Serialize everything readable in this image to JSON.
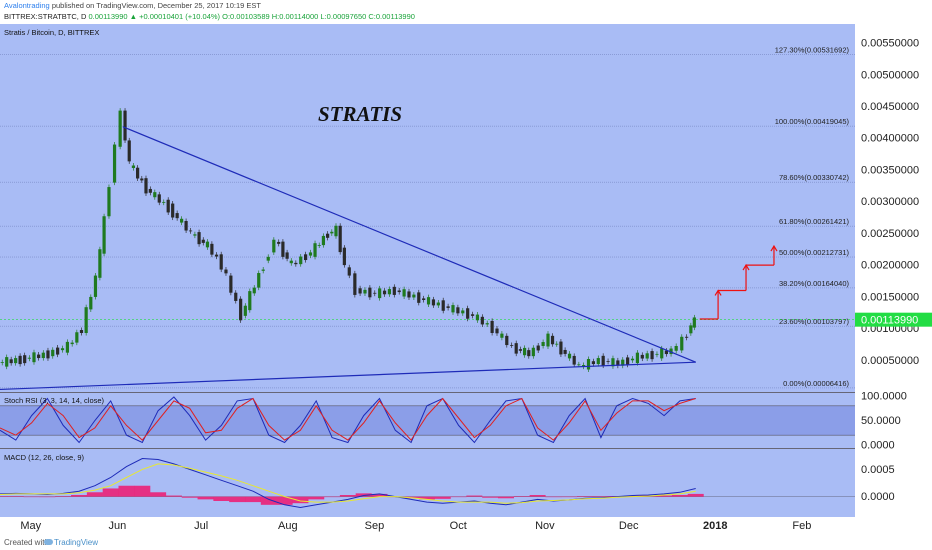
{
  "header": {
    "username": "Avalontrading",
    "published": " published on TradingView.com, December 25, 2017 10:19 EST",
    "symbol_line": "BITTREX:STRATBTC, D",
    "change": "0.00113990 ▲ +0.00010401 (+10.04%)",
    "ohlc": "O:0.00103589 H:0.00114000 L:0.00097650 C:0.00113990"
  },
  "footer": {
    "credit": "Created with",
    "brand": "TradingView"
  },
  "colors": {
    "bg": "#a9bcf5",
    "up": "#1f7a1f",
    "down": "#2a2a2a",
    "trend": "#1e2bb8",
    "last": "#22dd44",
    "arrow": "#ee1111"
  },
  "icons": [
    "tradingview-logo-icon",
    "arrow-up-icon"
  ],
  "chart_data": [
    {
      "type": "line",
      "title": "Stratis / Bitcoin, D, BITTREX",
      "annotation": "STRATIS",
      "ylim": [
        0.0,
        0.0058
      ],
      "y_ticks": [
        "0.00050000",
        "0.00100000",
        "0.00150000",
        "0.00200000",
        "0.00250000",
        "0.00300000",
        "0.00350000",
        "0.00400000",
        "0.00450000",
        "0.00500000",
        "0.00550000"
      ],
      "y_tick_values": [
        0.0005,
        0.001,
        0.0015,
        0.002,
        0.0025,
        0.003,
        0.0035,
        0.004,
        0.0045,
        0.005,
        0.0055
      ],
      "x_ticks": [
        "May",
        "Jun",
        "Jul",
        "Aug",
        "Sep",
        "Oct",
        "Nov",
        "Dec",
        "2018",
        "Feb"
      ],
      "last_price": "0.00113990",
      "last_value": 0.0011399,
      "fib_levels": [
        {
          "label": "127.30%(0.00531692)",
          "value": 0.00531692
        },
        {
          "label": "100.00%(0.00419045)",
          "value": 0.00419045
        },
        {
          "label": "78.60%(0.00330742)",
          "value": 0.00330742
        },
        {
          "label": "61.80%(0.00261421)",
          "value": 0.00261421
        },
        {
          "label": "50.00%(0.00212731)",
          "value": 0.00212731
        },
        {
          "label": "38.20%(0.00164040)",
          "value": 0.0016404
        },
        {
          "label": "23.60%(0.00103797)",
          "value": 0.00103797
        },
        {
          "label": "0.00%(0.00006416)",
          "value": 6.416e-05
        }
      ],
      "close_series": [
        {
          "date": "2017-04-20",
          "value": 0.00046
        },
        {
          "date": "2017-04-28",
          "value": 0.00051
        },
        {
          "date": "2017-05-08",
          "value": 0.0006
        },
        {
          "date": "2017-05-15",
          "value": 0.00072
        },
        {
          "date": "2017-05-20",
          "value": 0.001
        },
        {
          "date": "2017-05-25",
          "value": 0.0018
        },
        {
          "date": "2017-05-28",
          "value": 0.0027
        },
        {
          "date": "2017-06-01",
          "value": 0.0039
        },
        {
          "date": "2017-06-03",
          "value": 0.0044
        },
        {
          "date": "2017-06-06",
          "value": 0.0036
        },
        {
          "date": "2017-06-12",
          "value": 0.0032
        },
        {
          "date": "2017-06-20",
          "value": 0.0029
        },
        {
          "date": "2017-06-28",
          "value": 0.0025
        },
        {
          "date": "2017-07-04",
          "value": 0.0023
        },
        {
          "date": "2017-07-09",
          "value": 0.002
        },
        {
          "date": "2017-07-16",
          "value": 0.0012
        },
        {
          "date": "2017-07-24",
          "value": 0.002
        },
        {
          "date": "2017-07-28",
          "value": 0.0024
        },
        {
          "date": "2017-08-03",
          "value": 0.002
        },
        {
          "date": "2017-08-10",
          "value": 0.0022
        },
        {
          "date": "2017-08-16",
          "value": 0.0025
        },
        {
          "date": "2017-08-19",
          "value": 0.00255
        },
        {
          "date": "2017-08-22",
          "value": 0.002
        },
        {
          "date": "2017-08-26",
          "value": 0.0016
        },
        {
          "date": "2017-09-02",
          "value": 0.00155
        },
        {
          "date": "2017-09-09",
          "value": 0.0016
        },
        {
          "date": "2017-09-16",
          "value": 0.0015
        },
        {
          "date": "2017-09-23",
          "value": 0.0014
        },
        {
          "date": "2017-09-30",
          "value": 0.0013
        },
        {
          "date": "2017-10-07",
          "value": 0.0012
        },
        {
          "date": "2017-10-14",
          "value": 0.001
        },
        {
          "date": "2017-10-21",
          "value": 0.0007
        },
        {
          "date": "2017-10-27",
          "value": 0.0006
        },
        {
          "date": "2017-11-03",
          "value": 0.00085
        },
        {
          "date": "2017-11-09",
          "value": 0.0006
        },
        {
          "date": "2017-11-14",
          "value": 0.0004
        },
        {
          "date": "2017-11-21",
          "value": 0.0005
        },
        {
          "date": "2017-11-28",
          "value": 0.00045
        },
        {
          "date": "2017-12-05",
          "value": 0.00055
        },
        {
          "date": "2017-12-12",
          "value": 0.0006
        },
        {
          "date": "2017-12-17",
          "value": 0.00065
        },
        {
          "date": "2017-12-21",
          "value": 0.0008
        },
        {
          "date": "2017-12-24",
          "value": 0.00105
        },
        {
          "date": "2017-12-25",
          "value": 0.00114
        }
      ],
      "trend_lines": [
        {
          "from": {
            "date": "2017-06-03",
            "value": 0.00418
          },
          "to": {
            "date": "2017-12-25",
            "value": 0.00047
          }
        },
        {
          "from": {
            "date": "2017-04-20",
            "value": 4e-05
          },
          "to": {
            "date": "2017-12-25",
            "value": 0.00047
          }
        }
      ],
      "projection_arrows": [
        {
          "date": "2018-01-02",
          "from": 0.00115,
          "to": 0.0016
        },
        {
          "date": "2018-01-12",
          "from": 0.0016,
          "to": 0.002
        },
        {
          "date": "2018-01-22",
          "from": 0.002,
          "to": 0.0023
        }
      ]
    },
    {
      "type": "line",
      "title": "Stoch RSI (3, 3, 14, 14, close)",
      "ylim": [
        0,
        100
      ],
      "y_ticks": [
        "0.0000",
        "50.0000",
        "100.0000"
      ],
      "y_tick_values": [
        0,
        50,
        100
      ],
      "band": [
        20,
        80
      ],
      "series": [
        {
          "color": "#1e2bb8",
          "values": [
            30,
            10,
            60,
            95,
            40,
            5,
            50,
            90,
            20,
            5,
            70,
            98,
            60,
            10,
            40,
            90,
            95,
            20,
            5,
            40,
            90,
            15,
            5,
            60,
            95,
            30,
            5,
            80,
            95,
            40,
            5,
            50,
            90,
            95,
            20,
            5,
            60,
            95,
            15,
            80,
            95,
            85,
            60,
            90,
            95
          ]
        },
        {
          "color": "#e02020",
          "values": [
            35,
            20,
            45,
            85,
            60,
            15,
            35,
            80,
            40,
            10,
            50,
            90,
            75,
            25,
            30,
            75,
            95,
            40,
            10,
            30,
            80,
            30,
            10,
            45,
            90,
            45,
            10,
            60,
            95,
            55,
            15,
            40,
            80,
            95,
            35,
            10,
            45,
            90,
            30,
            65,
            90,
            90,
            70,
            85,
            95
          ]
        }
      ]
    },
    {
      "type": "line",
      "title": "MACD (12, 26, close, 9)",
      "ylim": [
        -0.0003,
        0.0008
      ],
      "y_ticks": [
        "0.0000",
        "0.0005"
      ],
      "y_tick_values": [
        0,
        0.0005
      ],
      "series": [
        {
          "color": "#1e2bb8",
          "values": [
            5e-05,
            6e-05,
            5e-05,
            4e-05,
            6e-05,
            0.0001,
            0.0002,
            0.00035,
            0.00055,
            0.0007,
            0.00068,
            0.0006,
            0.0005,
            0.0004,
            0.0003,
            0.0002,
            0.0001,
            -5e-05,
            -0.00015,
            -0.0002,
            -0.00015,
            -0.0001,
            -5e-05,
            2e-05,
            5e-05,
            0.0,
            -5e-05,
            -0.0001,
            -0.00012,
            -0.0001,
            -8e-05,
            -0.00012,
            -0.00015,
            -0.0001,
            -5e-05,
            -8e-05,
            -6e-05,
            -3e-05,
            -2e-05,
            0.0,
            2e-05,
            3e-05,
            5e-05,
            8e-05,
            0.00015
          ]
        },
        {
          "color": "#e8e830",
          "values": [
            4e-05,
            5e-05,
            5e-05,
            5e-05,
            5e-05,
            7e-05,
            0.00012,
            0.0002,
            0.00035,
            0.0005,
            0.0006,
            0.00058,
            0.00052,
            0.00045,
            0.00038,
            0.0003,
            0.0002,
            0.0001,
            0.0,
            -8e-05,
            -0.0001,
            -0.0001,
            -8e-05,
            -4e-05,
            0.0,
            0.0,
            -2e-05,
            -5e-05,
            -8e-05,
            -0.0001,
            -0.0001,
            -0.0001,
            -0.00012,
            -0.00011,
            -8e-05,
            -7e-05,
            -6e-05,
            -4e-05,
            -3e-05,
            -1e-05,
            0.0,
            1e-05,
            3e-05,
            5e-05,
            0.0001
          ]
        }
      ]
    }
  ]
}
